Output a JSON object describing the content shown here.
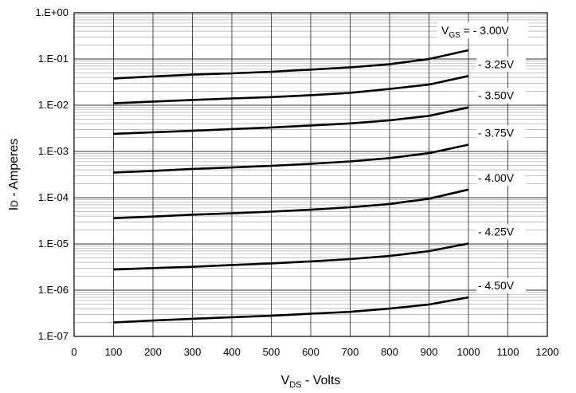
{
  "chart_data": {
    "type": "line",
    "title": "",
    "xlabel": {
      "main": "V",
      "sub": "DS",
      "rest": " - Volts"
    },
    "ylabel": {
      "main": "I",
      "sub": "D",
      "rest": " - Amperes"
    },
    "xlim": [
      0,
      1200
    ],
    "ylim": [
      1e-07,
      1
    ],
    "yscale": "log",
    "grid": true,
    "x_ticks": [
      "0",
      "100",
      "200",
      "300",
      "400",
      "500",
      "600",
      "700",
      "800",
      "900",
      "1000",
      "1100",
      "1200"
    ],
    "y_ticks": [
      {
        "value": 1e-07,
        "label": "1.E-07"
      },
      {
        "value": 1e-06,
        "label": "1.E-06"
      },
      {
        "value": 1e-05,
        "label": "1.E-05"
      },
      {
        "value": 0.0001,
        "label": "1.E-04"
      },
      {
        "value": 0.001,
        "label": "1.E-03"
      },
      {
        "value": 0.01,
        "label": "1.E-02"
      },
      {
        "value": 0.1,
        "label": "1.E-01"
      },
      {
        "value": 1,
        "label": "1.E+00"
      }
    ],
    "x": [
      100,
      200,
      300,
      400,
      500,
      600,
      700,
      800,
      900,
      1000
    ],
    "series_title": {
      "main": "V",
      "sub": "GS",
      "rest": " = - 3.00V"
    },
    "series": [
      {
        "name": "- 3.00V",
        "values": [
          0.038,
          0.042,
          0.046,
          0.049,
          0.053,
          0.059,
          0.066,
          0.077,
          0.1,
          0.155
        ]
      },
      {
        "name": "- 3.25V",
        "values": [
          0.011,
          0.012,
          0.013,
          0.014,
          0.015,
          0.0165,
          0.0185,
          0.0225,
          0.028,
          0.043
        ]
      },
      {
        "name": "- 3.50V",
        "values": [
          0.0024,
          0.0026,
          0.0028,
          0.00305,
          0.0033,
          0.00365,
          0.00405,
          0.0047,
          0.0059,
          0.009
        ]
      },
      {
        "name": "- 3.75V",
        "values": [
          0.00035,
          0.00038,
          0.00042,
          0.00045,
          0.00049,
          0.00054,
          0.00061,
          0.00072,
          0.00092,
          0.0014
        ]
      },
      {
        "name": "- 4.00V",
        "values": [
          3.6e-05,
          3.9e-05,
          4.3e-05,
          4.6e-05,
          5e-05,
          5.5e-05,
          6.2e-05,
          7.3e-05,
          9.5e-05,
          0.00015
        ]
      },
      {
        "name": "- 4.25V",
        "values": [
          2.8e-06,
          3e-06,
          3.2e-06,
          3.5e-06,
          3.8e-06,
          4.2e-06,
          4.7e-06,
          5.5e-06,
          7e-06,
          1.02e-05
        ]
      },
      {
        "name": "- 4.50V",
        "values": [
          2e-07,
          2.2e-07,
          2.4e-07,
          2.6e-07,
          2.8e-07,
          3.1e-07,
          3.4e-07,
          4e-07,
          4.9e-07,
          7e-07
        ]
      }
    ]
  }
}
